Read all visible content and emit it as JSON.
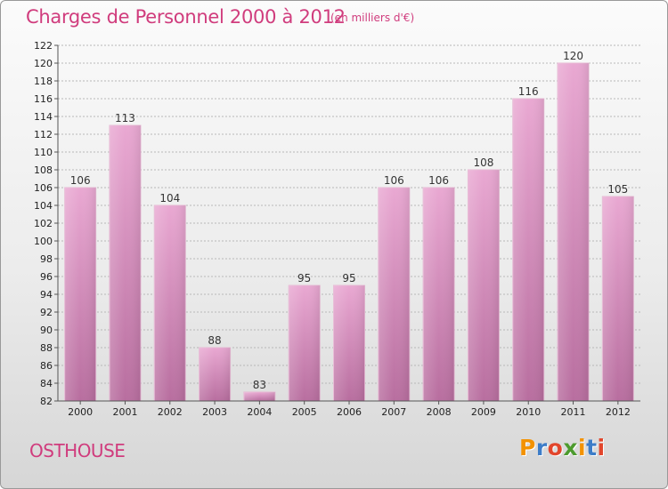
{
  "header": {
    "title": "Charges de Personnel 2000 à 2012",
    "subtitle": "(en milliers d'€)"
  },
  "footer": {
    "commune": "OSTHOUSE",
    "logo_text": "Proxiti",
    "logo_colors": [
      "#f39200",
      "#3d7dc8",
      "#e2462c",
      "#4d9b2e",
      "#f39200",
      "#3d7dc8",
      "#e2462c"
    ]
  },
  "chart_data": {
    "type": "bar",
    "categories": [
      "2000",
      "2001",
      "2002",
      "2003",
      "2004",
      "2005",
      "2006",
      "2007",
      "2008",
      "2009",
      "2010",
      "2011",
      "2012"
    ],
    "values": [
      106,
      113,
      104,
      88,
      83,
      95,
      95,
      106,
      106,
      108,
      116,
      120,
      105
    ],
    "ylim": [
      82,
      122
    ],
    "yticks": [
      82,
      84,
      86,
      88,
      90,
      92,
      94,
      96,
      98,
      100,
      102,
      104,
      106,
      108,
      110,
      112,
      114,
      116,
      118,
      120,
      122
    ],
    "grid": true,
    "bar_color": "#d67ab0"
  }
}
